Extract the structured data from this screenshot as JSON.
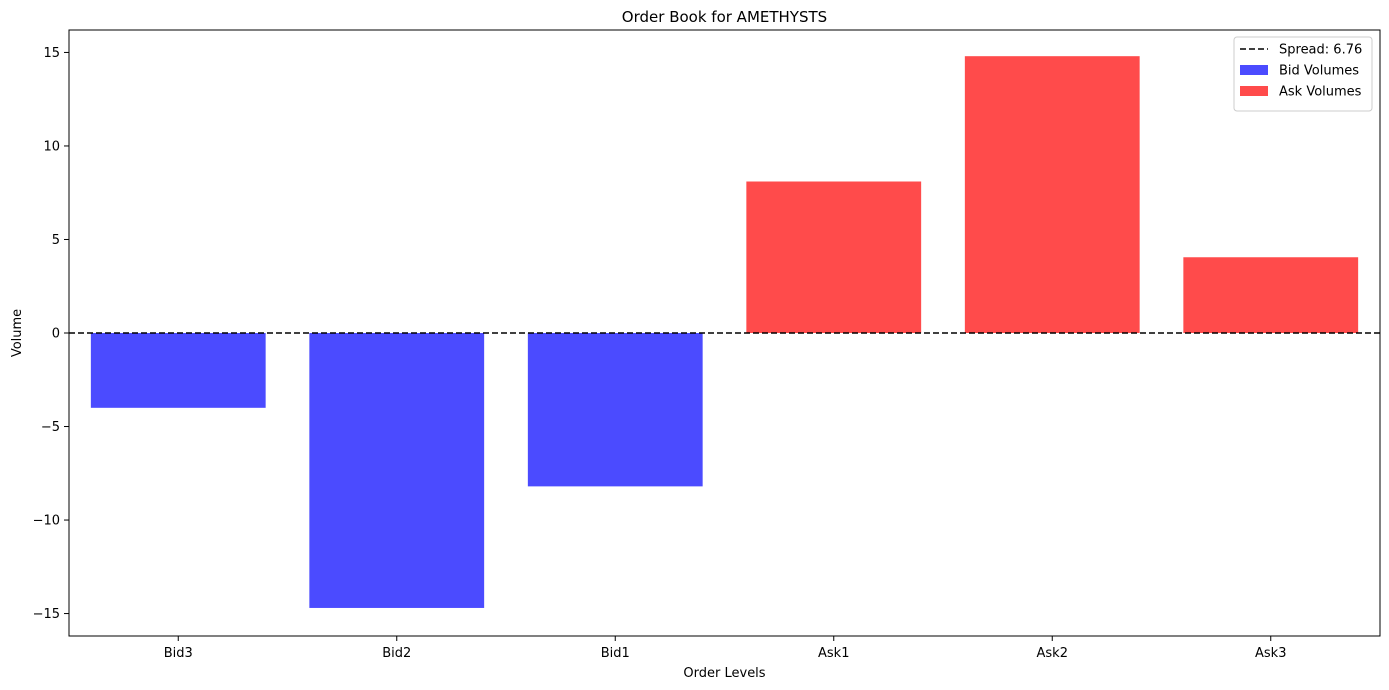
{
  "chart_data": {
    "type": "bar",
    "title": "Order Book for AMETHYSTS",
    "xlabel": "Order Levels",
    "ylabel": "Volume",
    "categories": [
      "Bid3",
      "Bid2",
      "Bid1",
      "Ask1",
      "Ask2",
      "Ask3"
    ],
    "series": [
      {
        "name": "Bid Volumes",
        "color": "#4b4bff",
        "values": [
          -4.0,
          -14.7,
          -8.2,
          null,
          null,
          null
        ]
      },
      {
        "name": "Ask Volumes",
        "color": "#ff4b4b",
        "values": [
          null,
          null,
          null,
          8.1,
          14.8,
          4.05
        ]
      }
    ],
    "reference_line": {
      "label": "Spread: 6.76",
      "y": 0,
      "style": "dashed",
      "color": "#000000"
    },
    "ylim": [
      -16.2,
      16.2
    ],
    "yticks": [
      -15,
      -10,
      -5,
      0,
      5,
      10,
      15
    ],
    "ytick_labels": [
      "−15",
      "−10",
      "−5",
      "0",
      "5",
      "10",
      "15"
    ],
    "grid": false,
    "legend_position": "top-right"
  }
}
